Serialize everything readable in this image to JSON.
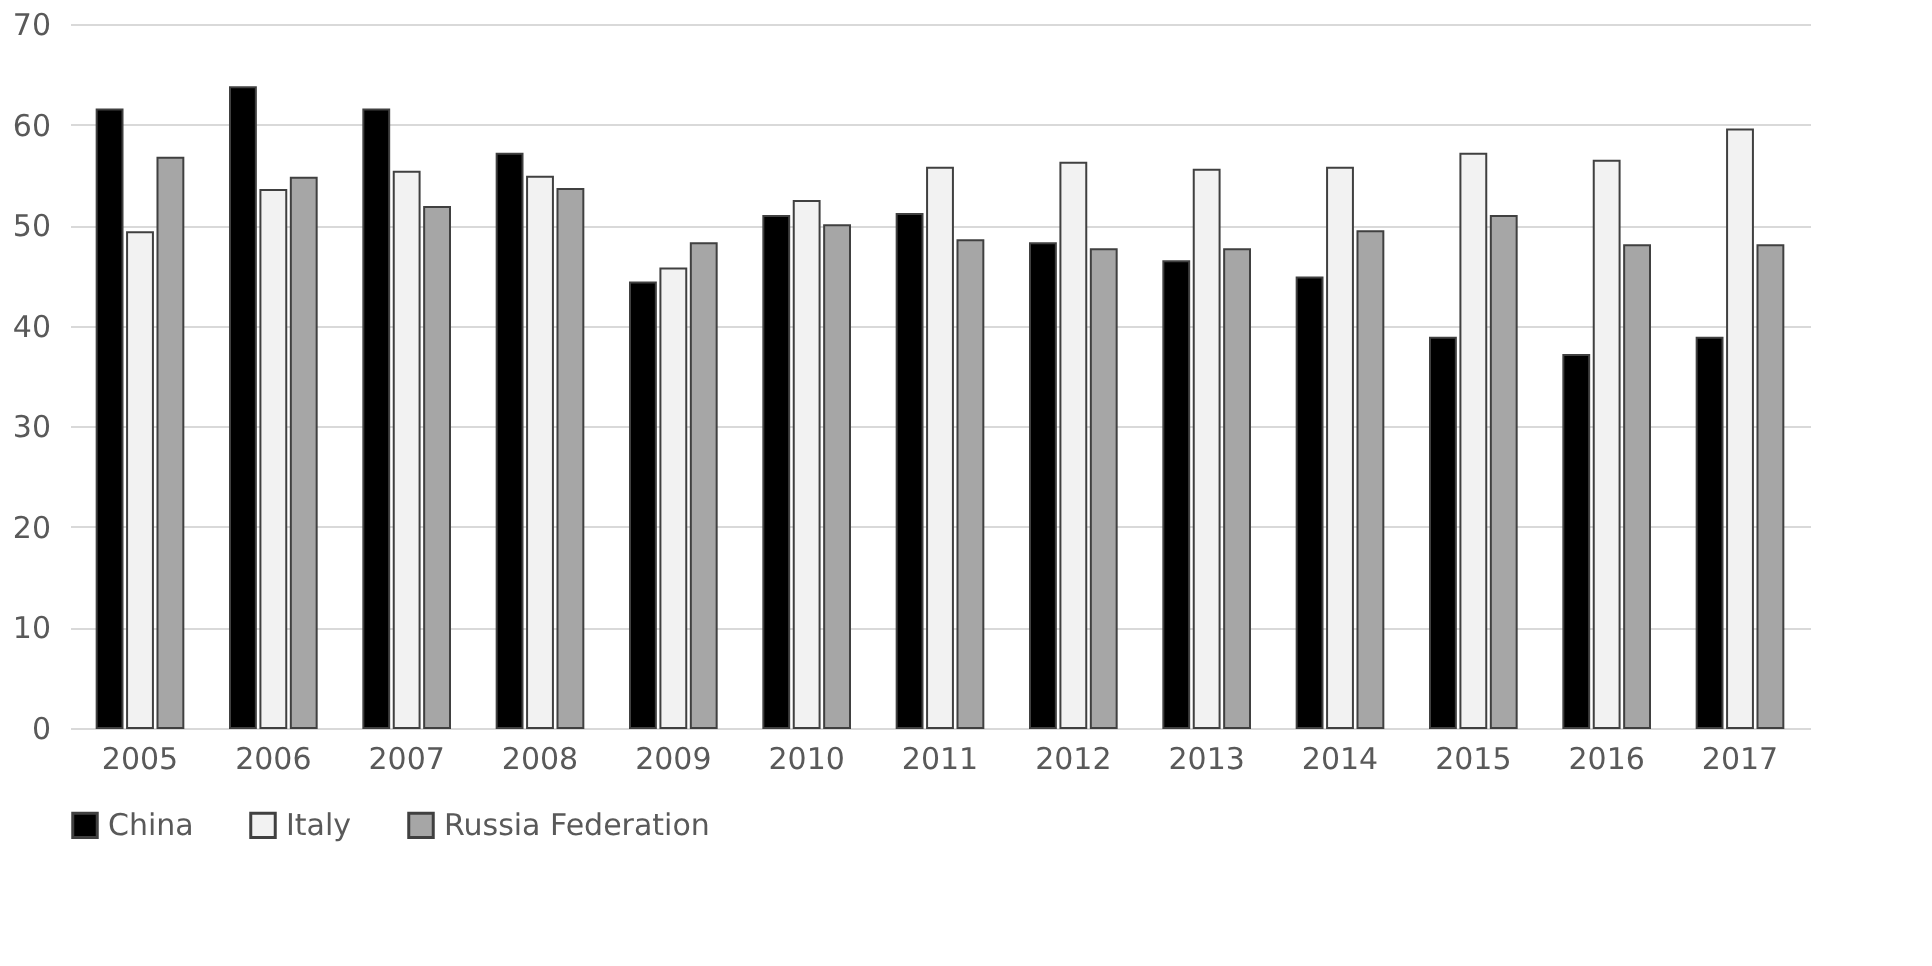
{
  "chart_data": {
    "type": "bar",
    "categories": [
      "2005",
      "2006",
      "2007",
      "2008",
      "2009",
      "2010",
      "2011",
      "2012",
      "2013",
      "2014",
      "2015",
      "2016",
      "2017"
    ],
    "series": [
      {
        "name": "China",
        "color": "#000000",
        "values": [
          61.5,
          63.7,
          61.5,
          57.1,
          44.3,
          50.9,
          51.1,
          48.2,
          46.4,
          44.8,
          38.8,
          37.1,
          38.8
        ]
      },
      {
        "name": "Italy",
        "color": "#f2f2f2",
        "values": [
          49.3,
          53.5,
          55.3,
          54.8,
          45.7,
          52.4,
          55.7,
          56.2,
          55.5,
          55.7,
          57.1,
          56.4,
          59.5
        ]
      },
      {
        "name": "Russia Federation",
        "color": "#a6a6a6",
        "values": [
          56.7,
          54.7,
          51.8,
          53.6,
          48.2,
          50.0,
          48.5,
          47.6,
          47.6,
          49.4,
          50.9,
          48.0,
          48.0
        ]
      }
    ],
    "ylim": [
      0,
      70
    ],
    "yticks": [
      0,
      10,
      20,
      30,
      40,
      50,
      60,
      70
    ],
    "grid": "y",
    "legend": "bottom"
  }
}
